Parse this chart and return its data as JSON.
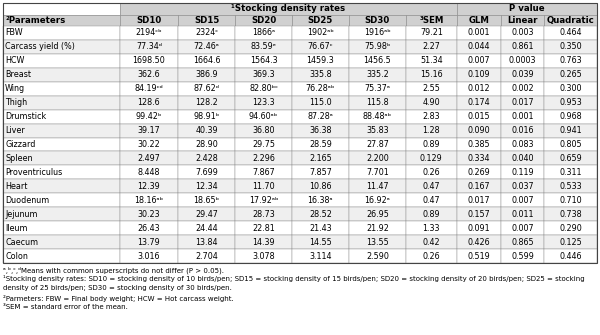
{
  "header_group1": "¹Stocking density rates",
  "header_group2": "P value",
  "col_headers": [
    "²Parameters",
    "SD10",
    "SD15",
    "SD20",
    "SD25",
    "SD30",
    "³SEM",
    "GLM",
    "Linear",
    "Quadratic"
  ],
  "rows": [
    [
      "FBW",
      "2194ᶜᵇ",
      "2324ᶜ",
      "1866ᵃ",
      "1902ᵃᵇ",
      "1916ᵃᵇ",
      "79.21",
      "0.001",
      "0.003",
      "0.464"
    ],
    [
      "Carcass yield (%)",
      "77.34ᵈ",
      "72.46ᵃ",
      "83.59ᵉ",
      "76.67ᶜ",
      "75.98ᵇ",
      "2.27",
      "0.044",
      "0.861",
      "0.350"
    ],
    [
      "HCW",
      "1698.50",
      "1664.6",
      "1564.3",
      "1459.3",
      "1456.5",
      "51.34",
      "0.007",
      "0.0003",
      "0.763"
    ],
    [
      "Breast",
      "362.6",
      "386.9",
      "369.3",
      "335.8",
      "335.2",
      "15.16",
      "0.109",
      "0.039",
      "0.265"
    ],
    [
      "Wing",
      "84.19ᶜᵈ",
      "87.62ᵈ",
      "82.80ᵇᶜ",
      "76.28ᵃᵇ",
      "75.37ᵃ",
      "2.55",
      "0.012",
      "0.002",
      "0.300"
    ],
    [
      "Thigh",
      "128.6",
      "128.2",
      "123.3",
      "115.0",
      "115.8",
      "4.90",
      "0.174",
      "0.017",
      "0.953"
    ],
    [
      "Drumstick",
      "99.42ᵇ",
      "98.91ᵇ",
      "94.60ᵃᵇ",
      "87.28ᵃ",
      "88.48ᵃᵇ",
      "2.83",
      "0.015",
      "0.001",
      "0.968"
    ],
    [
      "Liver",
      "39.17",
      "40.39",
      "36.80",
      "36.38",
      "35.83",
      "1.28",
      "0.090",
      "0.016",
      "0.941"
    ],
    [
      "Gizzard",
      "30.22",
      "28.90",
      "29.75",
      "28.59",
      "27.87",
      "0.89",
      "0.385",
      "0.083",
      "0.805"
    ],
    [
      "Spleen",
      "2.497",
      "2.428",
      "2.296",
      "2.165",
      "2.200",
      "0.129",
      "0.334",
      "0.040",
      "0.659"
    ],
    [
      "Proventriculus",
      "8.448",
      "7.699",
      "7.867",
      "7.857",
      "7.701",
      "0.26",
      "0.269",
      "0.119",
      "0.311"
    ],
    [
      "Heart",
      "12.39",
      "12.34",
      "11.70",
      "10.86",
      "11.47",
      "0.47",
      "0.167",
      "0.037",
      "0.533"
    ],
    [
      "Duodenum",
      "18.16ᵃᵇ",
      "18.65ᵇ",
      "17.92ᵃᵇ",
      "16.38ᵃ",
      "16.92ᵃ",
      "0.47",
      "0.017",
      "0.007",
      "0.710"
    ],
    [
      "Jejunum",
      "30.23",
      "29.47",
      "28.73",
      "28.52",
      "26.95",
      "0.89",
      "0.157",
      "0.011",
      "0.738"
    ],
    [
      "Ileum",
      "26.43",
      "24.44",
      "22.81",
      "21.43",
      "21.92",
      "1.33",
      "0.091",
      "0.007",
      "0.290"
    ],
    [
      "Caecum",
      "13.79",
      "13.84",
      "14.39",
      "14.55",
      "13.55",
      "0.42",
      "0.426",
      "0.865",
      "0.125"
    ],
    [
      "Colon",
      "3.016",
      "2.704",
      "3.078",
      "3.114",
      "2.590",
      "0.26",
      "0.519",
      "0.599",
      "0.446"
    ]
  ],
  "footnotes": [
    "ᵃ,ᵇ,ᶜ,ᵈMeans with common superscripts do not differ (P > 0.05).",
    "¹Stocking density rates: SD10 = stocking density of 10 birds/pen; SD15 = stocking density of 15 birds/pen; SD20 = stocking density of 20 birds/pen; SD25 = stocking",
    "density of 25 birds/pen; SD30 = stocking density of 30 birds/pen.",
    "²Parmeters: FBW = Final body weight; HCW = Hot carcass weight.",
    "³SEM = standard error of the mean."
  ],
  "col_widths_raw": [
    1.6,
    0.8,
    0.78,
    0.78,
    0.78,
    0.78,
    0.7,
    0.6,
    0.6,
    0.72
  ],
  "bg_color": "#ffffff",
  "header_bg": "#d0d0d0",
  "alt_row_bg": "#efefef",
  "border_color": "#888888",
  "text_color": "#000000",
  "hdr_fontsize": 6.2,
  "cell_fontsize": 5.8,
  "footnote_fontsize": 5.0
}
